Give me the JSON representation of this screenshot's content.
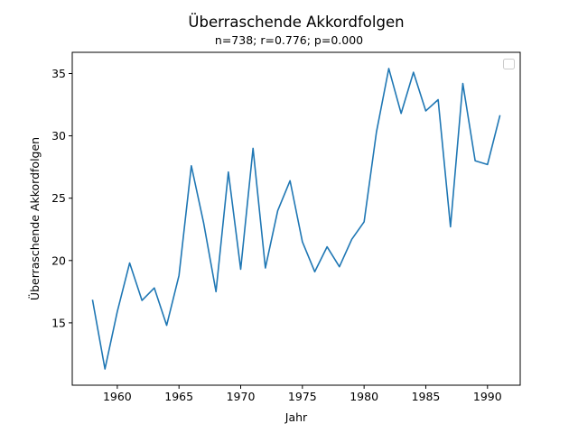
{
  "chart_data": {
    "type": "line",
    "title": "Überraschende Akkordfolgen",
    "subtitle": "n=738; r=0.776; p=0.000",
    "xlabel": "Jahr",
    "ylabel": "Überraschende Akkordfolgen",
    "xlim": [
      1956.35,
      1992.65
    ],
    "ylim": [
      10.0,
      36.7
    ],
    "xticks": [
      1960,
      1965,
      1970,
      1975,
      1980,
      1985,
      1990
    ],
    "yticks": [
      15,
      20,
      25,
      30,
      35
    ],
    "grid": false,
    "legend": {
      "placement": "top-right",
      "entries": []
    },
    "series": [
      {
        "color": "#1f77b4",
        "x": [
          1958,
          1959,
          1960,
          1961,
          1962,
          1963,
          1964,
          1965,
          1966,
          1967,
          1968,
          1969,
          1970,
          1971,
          1972,
          1973,
          1974,
          1975,
          1976,
          1977,
          1978,
          1979,
          1980,
          1981,
          1982,
          1983,
          1984,
          1985,
          1986,
          1987,
          1988,
          1989,
          1990,
          1991
        ],
        "values": [
          16.8,
          11.3,
          15.9,
          19.8,
          16.8,
          17.8,
          14.8,
          18.8,
          27.6,
          23.0,
          17.5,
          27.1,
          19.3,
          29.0,
          19.4,
          24.0,
          26.4,
          21.5,
          19.1,
          21.1,
          19.5,
          21.7,
          23.1,
          30.3,
          35.4,
          31.8,
          35.1,
          32.0,
          32.9,
          22.7,
          34.2,
          28.0,
          27.7,
          31.6
        ]
      }
    ]
  }
}
